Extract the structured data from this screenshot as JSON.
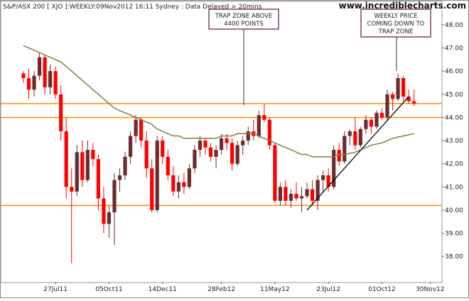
{
  "chart_data": {
    "type": "candlestick",
    "title": "S&P/ASX 200 [ XJO ]:WEEKLY:09Nov2012 16:11 Sydney : Data Delayed > 20mins",
    "watermark": "www.incrediblecharts.com",
    "annotations": [
      {
        "lines": [
          "TRAP ZONE ABOVE",
          "4400 POINTS"
        ]
      },
      {
        "lines": [
          "WEEKLY PRICE",
          "COMING DOWN TO",
          "TRAP ZONE"
        ]
      }
    ],
    "categories": [
      null,
      null,
      null,
      null,
      null,
      null,
      "27Jul11",
      null,
      null,
      null,
      null,
      null,
      null,
      null,
      null,
      null,
      "05Oct11",
      null,
      null,
      null,
      null,
      null,
      null,
      null,
      null,
      null,
      "14Dec11",
      null,
      null,
      null,
      null,
      null,
      null,
      null,
      null,
      null,
      null,
      "28Feb12",
      null,
      null,
      null,
      null,
      null,
      null,
      null,
      null,
      null,
      "11May12",
      null,
      null,
      null,
      null,
      null,
      null,
      null,
      null,
      null,
      "23Jul12",
      null,
      null,
      null,
      null,
      null,
      null,
      null,
      null,
      null,
      "01Oct12",
      null,
      null,
      null,
      null,
      null,
      null,
      null,
      null,
      "30Nov12"
    ],
    "open": [
      45.9,
      45.7,
      45.2,
      45.8,
      46.6,
      45.3,
      46.0,
      45.0,
      43.4,
      41.0,
      40.8,
      42.5,
      41.3,
      42.6,
      42.2,
      40.5,
      39.4,
      39.9,
      41.3,
      41.5,
      42.3,
      43.2,
      43.9,
      43.0,
      41.8,
      40.0,
      43.0,
      42.3,
      41.5,
      40.8,
      41.2,
      41.0,
      41.8,
      42.6,
      43.0,
      42.7,
      42.3,
      42.6,
      43.1,
      42.9,
      42.0,
      42.8,
      43.0,
      43.4,
      43.2,
      44.1,
      43.9,
      42.8,
      40.4,
      41.0,
      40.4,
      40.7,
      40.5,
      40.6,
      40.9,
      40.4,
      41.3,
      41.5,
      41.0,
      42.6,
      42.1,
      43.2,
      43.4,
      42.8,
      43.5,
      43.9,
      43.6,
      44.2,
      44.0,
      45.0,
      44.8,
      45.7,
      44.9,
      44.7,
      null,
      null,
      null
    ],
    "high": [
      46.0,
      46.1,
      46.0,
      46.8,
      46.7,
      46.3,
      46.2,
      45.4,
      44.0,
      41.8,
      42.8,
      43.0,
      43.0,
      42.9,
      42.4,
      41.0,
      40.2,
      41.6,
      41.8,
      42.5,
      43.4,
      44.1,
      44.0,
      43.4,
      42.2,
      43.2,
      43.2,
      42.6,
      41.9,
      41.5,
      41.6,
      42.0,
      42.8,
      43.2,
      43.1,
      42.9,
      42.8,
      43.3,
      43.3,
      43.1,
      43.0,
      43.2,
      43.6,
      43.9,
      44.3,
      44.6,
      44.0,
      42.9,
      41.2,
      41.3,
      40.9,
      41.2,
      41.0,
      41.2,
      41.3,
      41.5,
      41.7,
      41.8,
      42.8,
      42.9,
      43.4,
      43.5,
      44.0,
      43.6,
      44.1,
      44.0,
      44.3,
      44.4,
      45.2,
      45.1,
      45.9,
      45.8,
      45.2,
      45.2,
      null,
      null,
      null
    ],
    "low": [
      45.5,
      44.8,
      44.9,
      45.6,
      45.0,
      45.0,
      44.8,
      43.0,
      40.5,
      37.7,
      40.6,
      41.0,
      41.2,
      41.9,
      40.0,
      39.0,
      38.8,
      38.5,
      40.8,
      41.3,
      42.0,
      42.9,
      42.7,
      41.4,
      39.9,
      39.9,
      42.0,
      41.3,
      40.6,
      40.5,
      40.7,
      40.9,
      41.6,
      42.3,
      42.4,
      42.1,
      41.8,
      42.4,
      42.6,
      41.7,
      41.9,
      42.4,
      42.8,
      43.0,
      43.1,
      43.8,
      42.6,
      40.3,
      40.2,
      40.2,
      40.1,
      40.4,
      39.9,
      40.5,
      40.2,
      40.0,
      40.8,
      40.8,
      40.9,
      41.9,
      42.0,
      42.8,
      42.6,
      42.7,
      43.3,
      43.3,
      43.5,
      43.9,
      43.9,
      44.3,
      44.7,
      44.7,
      44.6,
      44.5,
      null,
      null,
      null
    ],
    "close": [
      45.7,
      45.2,
      45.8,
      46.6,
      45.3,
      46.0,
      45.0,
      43.4,
      41.0,
      40.8,
      42.5,
      41.3,
      42.6,
      42.2,
      40.5,
      39.4,
      39.9,
      41.3,
      41.5,
      42.3,
      43.2,
      43.9,
      43.0,
      41.8,
      40.0,
      43.0,
      42.3,
      41.5,
      40.8,
      41.2,
      41.0,
      41.8,
      42.6,
      43.0,
      42.7,
      42.3,
      42.6,
      43.1,
      42.9,
      42.0,
      42.8,
      43.0,
      43.4,
      43.2,
      44.1,
      43.9,
      42.8,
      40.4,
      41.0,
      40.4,
      40.7,
      40.5,
      40.6,
      40.9,
      40.4,
      41.3,
      41.5,
      41.0,
      42.6,
      42.1,
      43.2,
      43.4,
      42.8,
      43.5,
      43.9,
      43.6,
      44.2,
      44.0,
      45.0,
      44.8,
      45.7,
      44.9,
      44.7,
      44.6,
      null,
      null,
      null
    ],
    "moving_average": [
      47.1,
      47.0,
      46.9,
      46.8,
      46.7,
      46.6,
      46.5,
      46.4,
      46.2,
      46.0,
      45.8,
      45.6,
      45.4,
      45.2,
      45.0,
      44.8,
      44.6,
      44.4,
      44.3,
      44.2,
      44.1,
      44.0,
      43.9,
      43.8,
      43.7,
      43.5,
      43.4,
      43.3,
      43.2,
      43.2,
      43.1,
      43.1,
      43.1,
      43.1,
      43.1,
      43.1,
      43.1,
      43.2,
      43.2,
      43.2,
      43.3,
      43.3,
      43.3,
      43.3,
      43.2,
      43.1,
      43.0,
      42.9,
      42.8,
      42.7,
      42.6,
      42.5,
      42.4,
      42.4,
      42.3,
      42.3,
      42.3,
      42.3,
      42.3,
      42.4,
      42.4,
      42.45,
      42.5,
      42.6,
      42.7,
      42.8,
      42.85,
      42.9,
      43.0,
      43.1,
      43.15,
      43.2,
      43.25,
      43.3,
      null,
      null,
      null
    ],
    "levels": [
      44.6,
      44.0,
      40.2
    ],
    "trendline": {
      "x": [
        53,
        72
      ],
      "y": [
        40.0,
        44.9
      ]
    },
    "up_color": "#6b2c2c",
    "down_color": "#ff0000",
    "ma_color": "#7f7f3f",
    "level_color": "#ff8c00",
    "trendline_color": "#000000",
    "ylim": [
      36.9,
      48.95
    ],
    "yticks": [
      {
        "value": 38,
        "label": "38.00"
      },
      {
        "value": 39,
        "label": "39.00"
      },
      {
        "value": 40,
        "label": "40.00"
      },
      {
        "value": 41,
        "label": "41.00"
      },
      {
        "value": 42,
        "label": "42.00"
      },
      {
        "value": 43,
        "label": "43.00"
      },
      {
        "value": 44,
        "label": "44.00"
      },
      {
        "value": 45,
        "label": "45.00"
      },
      {
        "value": 46,
        "label": "46.00"
      },
      {
        "value": 47,
        "label": "47.00"
      },
      {
        "value": 48,
        "label": "48.00"
      }
    ]
  }
}
